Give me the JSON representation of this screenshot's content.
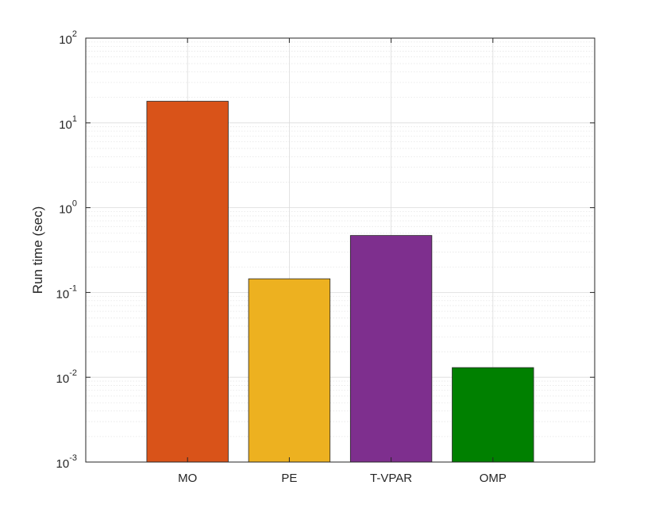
{
  "chart_data": {
    "type": "bar",
    "title": "",
    "xlabel": "",
    "ylabel": "Run time (sec)",
    "y_scale": "log",
    "ylim": [
      0.001,
      100
    ],
    "y_ticks": [
      {
        "value": 0.001,
        "base": "10",
        "exp": "-3"
      },
      {
        "value": 0.01,
        "base": "10",
        "exp": "-2"
      },
      {
        "value": 0.1,
        "base": "10",
        "exp": "-1"
      },
      {
        "value": 1,
        "base": "10",
        "exp": "0"
      },
      {
        "value": 10,
        "base": "10",
        "exp": "1"
      },
      {
        "value": 100,
        "base": "10",
        "exp": "2"
      }
    ],
    "categories": [
      "MO",
      "PE",
      "T-VPAR",
      "OMP"
    ],
    "values": [
      18,
      0.145,
      0.47,
      0.013
    ],
    "colors": [
      "#D95319",
      "#EDB120",
      "#7E2F8E",
      "#008000"
    ],
    "grid": true,
    "legend": "none"
  }
}
